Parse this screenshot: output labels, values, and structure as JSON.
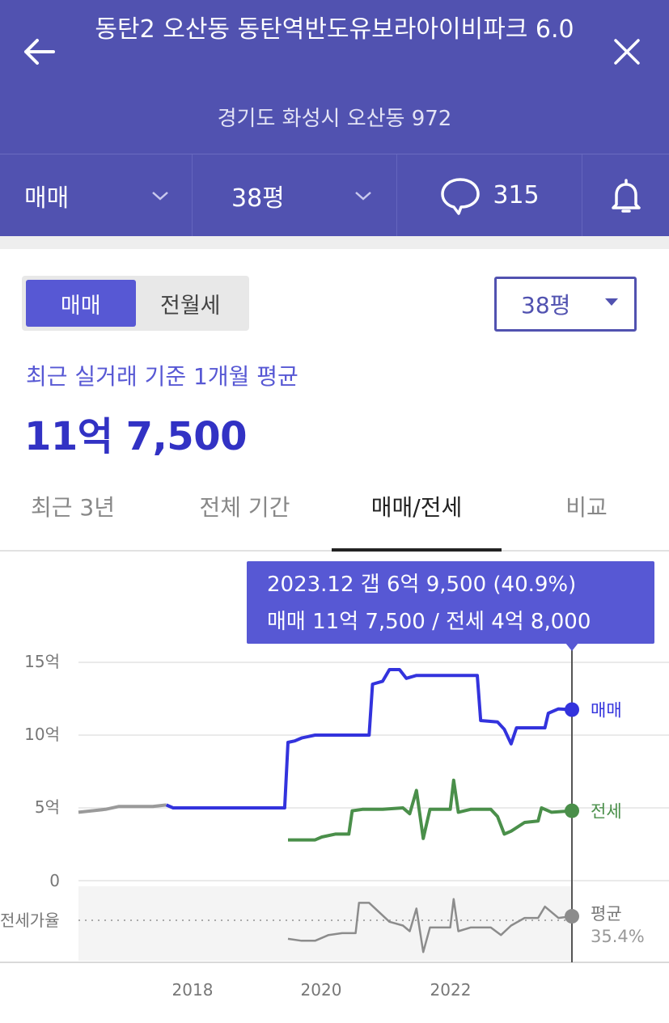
{
  "header": {
    "title": "동탄2 오산동 동탄역반도유보라아이비파크 6.0",
    "address": "경기도 화성시 오산동 972"
  },
  "subbar": {
    "deal_type": "매매",
    "size": "38평",
    "comment_count": "315"
  },
  "filters": {
    "toggle_sale": "매매",
    "toggle_rent": "전월세",
    "size_select": "38평"
  },
  "summary": {
    "label": "최근 실거래 기준 1개월 평균",
    "price": "11억 7,500"
  },
  "tabs": [
    "최근 3년",
    "전체 기간",
    "매매/전세",
    "비교"
  ],
  "active_tab": 2,
  "colors": {
    "header": "#5152b0",
    "sale": "#3333dd",
    "jeonse": "#4a8f4a",
    "ratio": "#888888",
    "old": "#9a9a9a",
    "accent": "#5758d4"
  },
  "tooltip": {
    "line1": "2023.12  갭 6억 9,500 (40.9%)",
    "line2": "매매 11억 7,500 / 전세 4억 8,000"
  },
  "chart_data": {
    "type": "line",
    "y_ticks": [
      "15억",
      "10억",
      "5억",
      "0"
    ],
    "ylim": [
      0,
      15
    ],
    "x_ticks": [
      "2018",
      "2020",
      "2022"
    ],
    "xlim": [
      2016.7,
      2024.0
    ],
    "ratio_label": "전세가율",
    "end_labels": {
      "sale": "매매",
      "jeonse": "전세",
      "ratio": "평균",
      "ratio_value": "35.4%"
    },
    "series": [
      {
        "name": "매매",
        "values_unit": "억",
        "points": [
          [
            2016.7,
            4.7
          ],
          [
            2016.9,
            4.8
          ],
          [
            2017.1,
            4.9
          ],
          [
            2017.3,
            5.1
          ],
          [
            2017.5,
            5.1
          ],
          [
            2017.7,
            5.1
          ],
          [
            2017.8,
            5.1
          ],
          [
            2018.0,
            5.2
          ],
          [
            2018.1,
            5.0
          ],
          [
            2018.5,
            5.0
          ],
          [
            2019.0,
            5.0
          ],
          [
            2019.5,
            5.0
          ],
          [
            2019.75,
            5.0
          ],
          [
            2019.8,
            9.5
          ],
          [
            2019.9,
            9.6
          ],
          [
            2020.0,
            9.8
          ],
          [
            2020.2,
            10.0
          ],
          [
            2020.5,
            10.0
          ],
          [
            2020.8,
            10.0
          ],
          [
            2021.0,
            10.0
          ],
          [
            2021.05,
            13.5
          ],
          [
            2021.2,
            13.7
          ],
          [
            2021.3,
            14.5
          ],
          [
            2021.45,
            14.5
          ],
          [
            2021.55,
            13.9
          ],
          [
            2021.7,
            14.1
          ],
          [
            2022.0,
            14.1
          ],
          [
            2022.3,
            14.1
          ],
          [
            2022.6,
            14.1
          ],
          [
            2022.65,
            11.0
          ],
          [
            2022.9,
            10.9
          ],
          [
            2023.0,
            10.4
          ],
          [
            2023.1,
            9.4
          ],
          [
            2023.18,
            10.5
          ],
          [
            2023.4,
            10.5
          ],
          [
            2023.6,
            10.5
          ],
          [
            2023.65,
            11.5
          ],
          [
            2023.8,
            11.8
          ],
          [
            2024.0,
            11.75
          ]
        ]
      },
      {
        "name": "전세",
        "values_unit": "억",
        "points": [
          [
            2019.8,
            2.8
          ],
          [
            2020.0,
            2.8
          ],
          [
            2020.2,
            2.8
          ],
          [
            2020.3,
            3.0
          ],
          [
            2020.5,
            3.2
          ],
          [
            2020.7,
            3.2
          ],
          [
            2020.75,
            4.8
          ],
          [
            2020.9,
            4.9
          ],
          [
            2021.2,
            4.9
          ],
          [
            2021.5,
            5.0
          ],
          [
            2021.6,
            4.6
          ],
          [
            2021.7,
            6.2
          ],
          [
            2021.8,
            2.9
          ],
          [
            2021.9,
            4.9
          ],
          [
            2022.0,
            4.9
          ],
          [
            2022.2,
            4.9
          ],
          [
            2022.25,
            6.9
          ],
          [
            2022.32,
            4.7
          ],
          [
            2022.5,
            4.9
          ],
          [
            2022.8,
            4.9
          ],
          [
            2022.9,
            4.4
          ],
          [
            2023.0,
            3.2
          ],
          [
            2023.1,
            3.4
          ],
          [
            2023.3,
            4.0
          ],
          [
            2023.5,
            4.1
          ],
          [
            2023.55,
            5.0
          ],
          [
            2023.7,
            4.7
          ],
          [
            2024.0,
            4.8
          ]
        ]
      },
      {
        "name": "전세가율",
        "values_unit": "%",
        "points": [
          [
            2019.8,
            29
          ],
          [
            2020.0,
            28
          ],
          [
            2020.2,
            28
          ],
          [
            2020.4,
            31
          ],
          [
            2020.6,
            32
          ],
          [
            2020.8,
            32
          ],
          [
            2020.85,
            48
          ],
          [
            2021.0,
            48
          ],
          [
            2021.3,
            38
          ],
          [
            2021.5,
            36
          ],
          [
            2021.6,
            33
          ],
          [
            2021.7,
            45
          ],
          [
            2021.8,
            22
          ],
          [
            2021.9,
            35
          ],
          [
            2022.0,
            35
          ],
          [
            2022.2,
            35
          ],
          [
            2022.25,
            50
          ],
          [
            2022.32,
            33
          ],
          [
            2022.5,
            35
          ],
          [
            2022.8,
            35
          ],
          [
            2022.95,
            31
          ],
          [
            2023.1,
            36
          ],
          [
            2023.3,
            40
          ],
          [
            2023.5,
            40
          ],
          [
            2023.6,
            46
          ],
          [
            2023.8,
            40
          ],
          [
            2024.0,
            40.9
          ]
        ]
      }
    ]
  }
}
